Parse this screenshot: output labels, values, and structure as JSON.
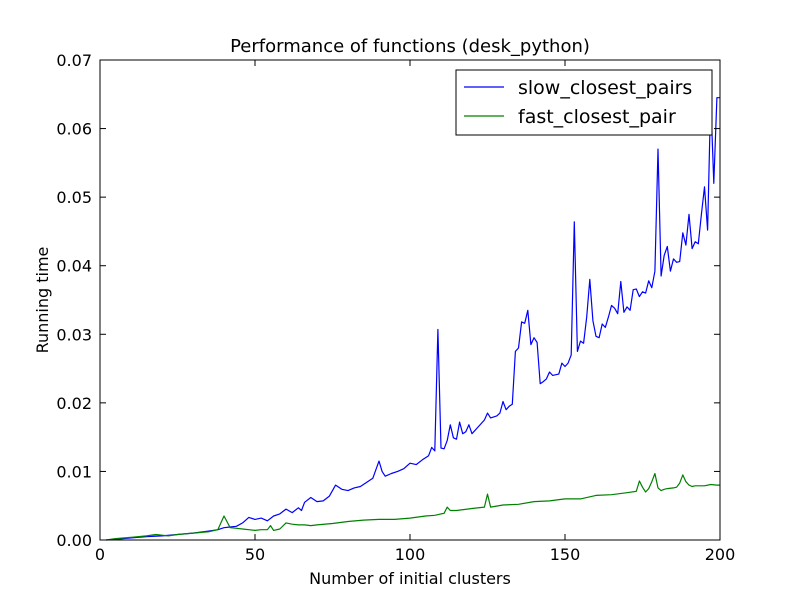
{
  "chart_data": {
    "type": "line",
    "title": "Performance of functions (desk_python)",
    "xlabel": "Number of initial clusters",
    "ylabel": "Running time",
    "xlim": [
      0,
      200
    ],
    "ylim": [
      0,
      0.07
    ],
    "xticks": [
      0,
      50,
      100,
      150,
      200
    ],
    "yticks": [
      0.0,
      0.01,
      0.02,
      0.03,
      0.04,
      0.05,
      0.06,
      0.07
    ],
    "ytick_labels": [
      "0.00",
      "0.01",
      "0.02",
      "0.03",
      "0.04",
      "0.05",
      "0.06",
      "0.07"
    ],
    "grid": false,
    "legend_position": "top-right",
    "series": [
      {
        "name": "slow_closest_pairs",
        "color": "#0000ff",
        "x": [
          2,
          5,
          10,
          15,
          20,
          25,
          30,
          35,
          38,
          40,
          42,
          44,
          46,
          48,
          50,
          52,
          54,
          56,
          58,
          60,
          62,
          64,
          65,
          66,
          68,
          70,
          72,
          74,
          76,
          78,
          80,
          82,
          84,
          86,
          88,
          90,
          91,
          92,
          94,
          96,
          98,
          100,
          102,
          104,
          106,
          107,
          108,
          109,
          110,
          111,
          112,
          113,
          114,
          115,
          116,
          117,
          118,
          119,
          120,
          122,
          124,
          125,
          126,
          128,
          129,
          130,
          131,
          132,
          133,
          134,
          135,
          136,
          137,
          138,
          139,
          140,
          141,
          142,
          143,
          144,
          145,
          146,
          148,
          149,
          150,
          151,
          152,
          153,
          154,
          155,
          156,
          157,
          158,
          159,
          160,
          161,
          162,
          163,
          164,
          165,
          166,
          167,
          168,
          169,
          170,
          171,
          172,
          173,
          174,
          175,
          176,
          177,
          178,
          179,
          180,
          181,
          182,
          183,
          184,
          185,
          186,
          187,
          188,
          189,
          190,
          191,
          192,
          193,
          194,
          195,
          196,
          197,
          198,
          199,
          200
        ],
        "values": [
          0.0,
          0.0001,
          0.0003,
          0.0005,
          0.0006,
          0.0008,
          0.001,
          0.0013,
          0.0015,
          0.0018,
          0.0019,
          0.002,
          0.0025,
          0.0033,
          0.003,
          0.0032,
          0.0028,
          0.0035,
          0.0038,
          0.0045,
          0.004,
          0.0047,
          0.0043,
          0.0055,
          0.0062,
          0.0056,
          0.0057,
          0.0064,
          0.008,
          0.0074,
          0.0072,
          0.0076,
          0.0078,
          0.0084,
          0.009,
          0.0115,
          0.01,
          0.0093,
          0.0097,
          0.01,
          0.0104,
          0.0112,
          0.011,
          0.0117,
          0.0123,
          0.0135,
          0.013,
          0.0307,
          0.0134,
          0.0133,
          0.0145,
          0.0168,
          0.0149,
          0.0147,
          0.0172,
          0.0155,
          0.0158,
          0.0168,
          0.0155,
          0.0165,
          0.0175,
          0.0185,
          0.0178,
          0.0181,
          0.0185,
          0.0202,
          0.019,
          0.0195,
          0.0198,
          0.0275,
          0.028,
          0.0318,
          0.0316,
          0.0335,
          0.0285,
          0.0295,
          0.0288,
          0.0228,
          0.0231,
          0.0235,
          0.0245,
          0.024,
          0.0242,
          0.0258,
          0.0253,
          0.0258,
          0.027,
          0.0464,
          0.0275,
          0.029,
          0.0287,
          0.0325,
          0.038,
          0.032,
          0.0297,
          0.0295,
          0.0315,
          0.031,
          0.0325,
          0.0342,
          0.0338,
          0.033,
          0.0377,
          0.0332,
          0.034,
          0.0335,
          0.0365,
          0.0366,
          0.0355,
          0.0362,
          0.036,
          0.0378,
          0.0368,
          0.0392,
          0.057,
          0.0385,
          0.0415,
          0.0428,
          0.0392,
          0.041,
          0.0405,
          0.0406,
          0.0448,
          0.043,
          0.0475,
          0.0425,
          0.0435,
          0.0432,
          0.0475,
          0.0515,
          0.0452,
          0.0645,
          0.052,
          0.0645,
          0.0645
        ],
        "x_trim": 199.5
      },
      {
        "name": "fast_closest_pair",
        "color": "#008000",
        "x": [
          2,
          5,
          10,
          15,
          18,
          20,
          22,
          25,
          30,
          35,
          38,
          40,
          42,
          44,
          46,
          48,
          50,
          52,
          54,
          55,
          56,
          58,
          60,
          62,
          64,
          66,
          68,
          70,
          75,
          80,
          85,
          90,
          95,
          100,
          105,
          108,
          110,
          111,
          112,
          113,
          115,
          120,
          124,
          125,
          126,
          130,
          135,
          140,
          145,
          150,
          155,
          160,
          165,
          170,
          173,
          174,
          175,
          176,
          177,
          178,
          179,
          180,
          181,
          182,
          183,
          185,
          186,
          187,
          188,
          189,
          190,
          191,
          192,
          193,
          195,
          197,
          199,
          200
        ],
        "values": [
          0.0,
          0.0002,
          0.0004,
          0.0006,
          0.0008,
          0.0007,
          0.0006,
          0.0008,
          0.001,
          0.0012,
          0.0015,
          0.0035,
          0.0018,
          0.0017,
          0.0016,
          0.0015,
          0.0014,
          0.0015,
          0.0015,
          0.0021,
          0.0014,
          0.0016,
          0.0025,
          0.0023,
          0.0022,
          0.0022,
          0.0021,
          0.0022,
          0.0024,
          0.0027,
          0.0029,
          0.003,
          0.003,
          0.0032,
          0.0035,
          0.0036,
          0.0038,
          0.0039,
          0.0048,
          0.0043,
          0.0043,
          0.0046,
          0.0048,
          0.0067,
          0.0048,
          0.0051,
          0.0052,
          0.0056,
          0.0057,
          0.006,
          0.006,
          0.0065,
          0.0066,
          0.0069,
          0.0071,
          0.0086,
          0.0077,
          0.007,
          0.0075,
          0.0085,
          0.0097,
          0.0076,
          0.0072,
          0.0074,
          0.0075,
          0.0076,
          0.0077,
          0.0083,
          0.0095,
          0.0085,
          0.008,
          0.0078,
          0.0079,
          0.0079,
          0.0079,
          0.0081,
          0.008,
          0.008
        ]
      }
    ]
  }
}
